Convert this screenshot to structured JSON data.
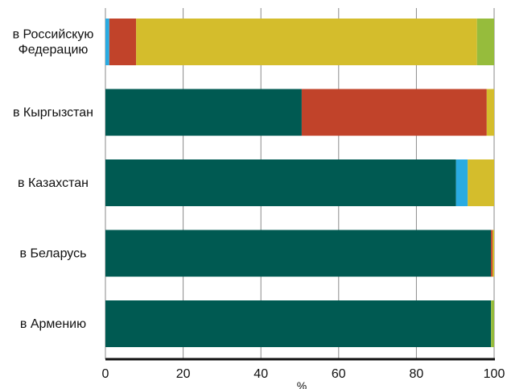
{
  "chart_data": {
    "type": "bar",
    "orientation": "horizontal",
    "stacked": true,
    "categories": [
      "в Российскую Федерацию",
      "в Кыргызстан",
      "в Казахстан",
      "в Беларусь",
      "в Армению"
    ],
    "category_lines": [
      [
        "в Российскую",
        "Федерацию"
      ],
      [
        "в Кыргызстан"
      ],
      [
        "в Казахстан"
      ],
      [
        "в Беларусь"
      ],
      [
        "в Армению"
      ]
    ],
    "series": [
      {
        "color": "#005a52",
        "values": [
          0,
          50.5,
          90.2,
          99.2,
          99.2
        ]
      },
      {
        "color": "#29abe2",
        "values": [
          1.0,
          0,
          3.0,
          0,
          0
        ]
      },
      {
        "color": "#c1432a",
        "values": [
          6.9,
          47.6,
          0,
          0.4,
          0
        ]
      },
      {
        "color": "#d4bd2c",
        "values": [
          87.7,
          1.9,
          6.8,
          0.4,
          0
        ]
      },
      {
        "color": "#96bc3c",
        "values": [
          4.4,
          0,
          0,
          0,
          0.8
        ]
      }
    ],
    "xlabel": "%",
    "xlim": [
      0,
      100
    ],
    "xticks": [
      0,
      20,
      40,
      60,
      80,
      100
    ],
    "grid": "vertical"
  }
}
